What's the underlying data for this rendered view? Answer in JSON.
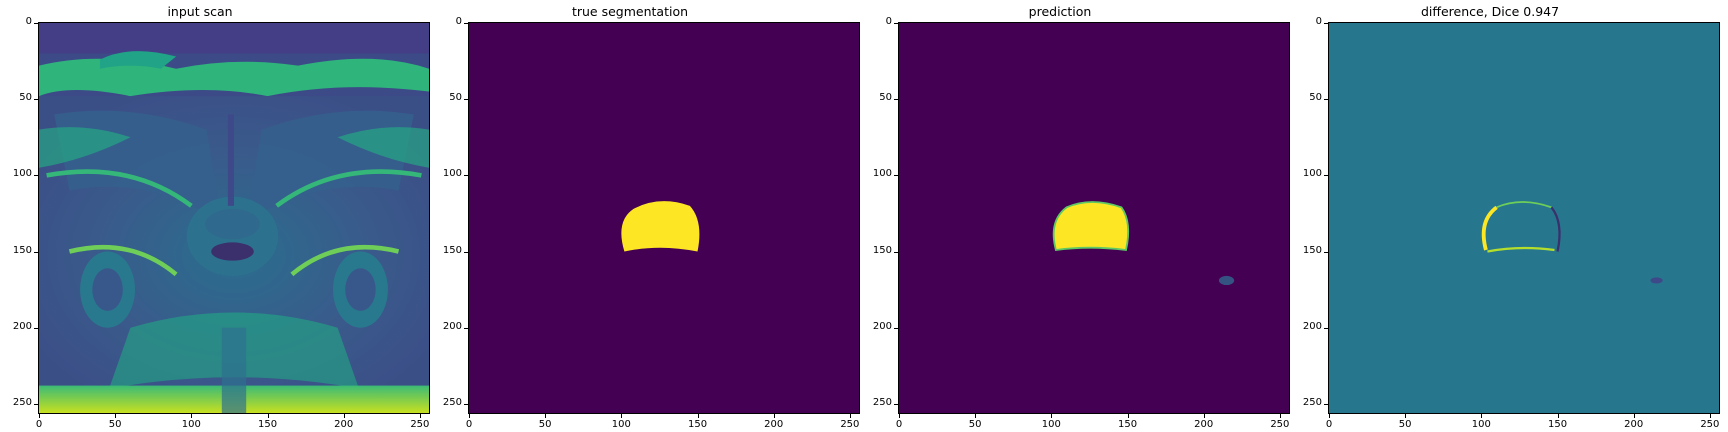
{
  "panels": [
    {
      "title": "input scan",
      "kind": "mri"
    },
    {
      "title": "true segmentation",
      "kind": "truth"
    },
    {
      "title": "prediction",
      "kind": "pred"
    },
    {
      "title": "difference, Dice 0.947",
      "kind": "diff"
    }
  ],
  "axes": {
    "xticks": [
      "0",
      "50",
      "100",
      "150",
      "200",
      "250"
    ],
    "yticks": [
      "0",
      "50",
      "100",
      "150",
      "200",
      "250"
    ],
    "range": [
      0,
      256
    ]
  },
  "colors": {
    "viridis_dark": "#440154",
    "viridis_mid": "#21918c",
    "viridis_bright": "#fde725",
    "viridis_teal": "#26778e"
  }
}
